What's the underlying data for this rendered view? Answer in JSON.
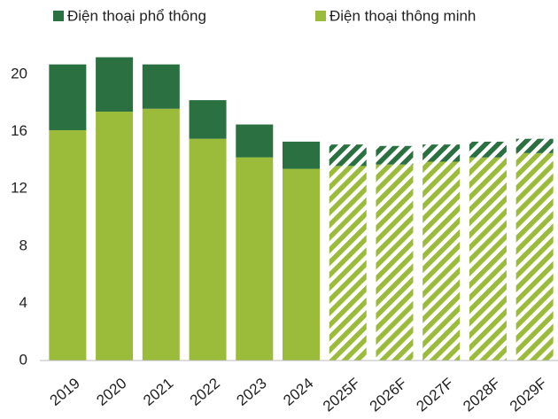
{
  "chart_data": {
    "type": "stacked_bar",
    "categories": [
      "2019",
      "2020",
      "2021",
      "2022",
      "2023",
      "2024",
      "2025F",
      "2026F",
      "2027F",
      "2028F",
      "2029F"
    ],
    "series": [
      {
        "name": "Điện thoại thông minh",
        "color": "#9bbb3b",
        "values": [
          16.1,
          17.4,
          17.6,
          15.5,
          14.2,
          13.4,
          13.6,
          13.7,
          13.9,
          14.2,
          14.5
        ]
      },
      {
        "name": "Điện thoại phổ thông",
        "color": "#2a7040",
        "values": [
          4.6,
          3.8,
          3.1,
          2.7,
          2.3,
          1.9,
          1.5,
          1.3,
          1.2,
          1.1,
          1.0
        ]
      }
    ],
    "hatched": [
      false,
      false,
      false,
      false,
      false,
      false,
      true,
      true,
      true,
      true,
      true
    ],
    "ylim": [
      0,
      20.8
    ],
    "yticks": [
      0,
      4,
      8,
      12,
      16,
      20
    ],
    "grid": false
  }
}
